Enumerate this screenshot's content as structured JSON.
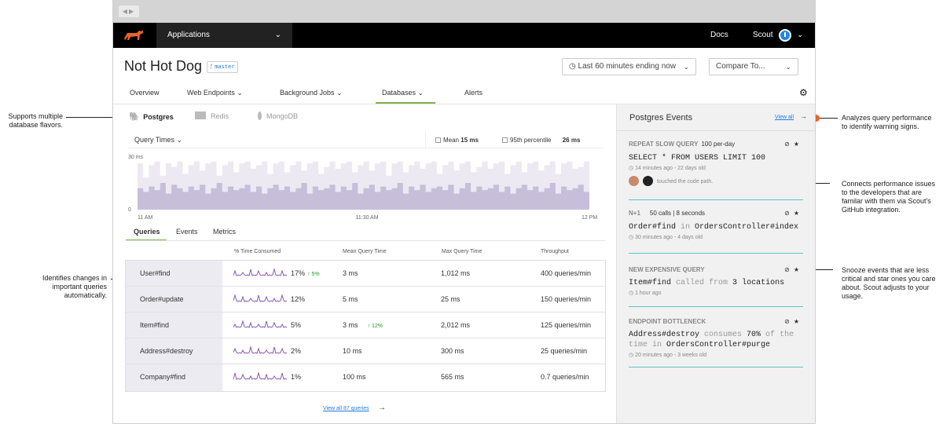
{
  "callouts": {
    "flavors": "Supports multiple\ndatabase flavors.",
    "changes": "Identifies  changes in\nimportant queries\nautomatically.",
    "analyzes": "Analyzes query performance\nto identify warning signs.",
    "connects": "Connects performance issues\nto the developers that are\nfamilar with them via Scout's\nGitHub integration.",
    "snooze": "Snooze events that are less\ncritical and star ones you care\nabout. Scout adjusts to your\nusage."
  },
  "topnav": {
    "app_selector": "Applications",
    "docs": "Docs",
    "user": "Scout"
  },
  "header": {
    "title": "Not Hot Dog",
    "branch": "master",
    "time_range": "Last 60 minutes ending now",
    "compare": "Compare To..."
  },
  "tabs": [
    "Overview",
    "Web Endpoints",
    "Background Jobs",
    "Databases",
    "Alerts"
  ],
  "db_flavors": [
    "Postgres",
    "Redis",
    "MongoDB"
  ],
  "chart_controls": {
    "metric": "Query Times",
    "mean_label": "Mean",
    "mean_value": "15 ms",
    "p95_label": "95th percentile",
    "p95_value": "26 ms"
  },
  "chart_data": {
    "type": "area",
    "ylabel": "",
    "y_ticks": [
      "30 ms",
      "0"
    ],
    "ylim": [
      0,
      30
    ],
    "x_ticks": [
      "11 AM",
      "11:30 AM",
      "12 PM"
    ],
    "series": [
      {
        "name": "95th percentile",
        "values": [
          26,
          18,
          25,
          27,
          19,
          26,
          24,
          27,
          20,
          25,
          27,
          22,
          26,
          27,
          19,
          25,
          27,
          21,
          26,
          27,
          23,
          25,
          27,
          20,
          26,
          27,
          21,
          25,
          27,
          22,
          26,
          27,
          20,
          24,
          27,
          23,
          26,
          27,
          21,
          25,
          27,
          22,
          26,
          27,
          19,
          26,
          27,
          21,
          25,
          27,
          23,
          26,
          27,
          20,
          25,
          27,
          22,
          26,
          27,
          21,
          24,
          27,
          23,
          26,
          27,
          20,
          25,
          27,
          21,
          26,
          27,
          22,
          25,
          27,
          20,
          26,
          27,
          23,
          24,
          27
        ]
      },
      {
        "name": "Mean",
        "values": [
          12,
          10,
          13,
          11,
          15,
          9,
          14,
          12,
          10,
          13,
          11,
          14,
          9,
          12,
          15,
          10,
          13,
          11,
          12,
          14,
          10,
          13,
          9,
          12,
          14,
          11,
          13,
          10,
          12,
          15,
          9,
          13,
          11,
          12,
          14,
          10,
          13,
          11,
          15,
          9,
          12,
          14,
          10,
          13,
          11,
          12,
          15,
          9,
          13,
          11,
          14,
          10,
          12,
          13,
          11,
          14,
          9,
          12,
          15,
          10,
          13,
          11,
          12,
          14,
          10,
          13,
          9,
          12,
          14,
          11,
          13,
          10,
          12,
          15,
          9,
          13,
          11,
          12,
          14,
          10
        ]
      }
    ]
  },
  "query_tabs": [
    "Queries",
    "Events",
    "Metrics"
  ],
  "table": {
    "headers": [
      "% Time Consumed",
      "Mean Query Time",
      "Max Query Time",
      "Throughput"
    ],
    "rows": [
      {
        "name": "User#find",
        "pct": "17%",
        "pct_delta": "↑ 5%",
        "mean": "3 ms",
        "mean_delta": "",
        "max": "1,012 ms",
        "throughput": "400 queries/min"
      },
      {
        "name": "Order#update",
        "pct": "12%",
        "pct_delta": "",
        "mean": "5 ms",
        "mean_delta": "",
        "max": "25 ms",
        "throughput": "150 queries/min"
      },
      {
        "name": "Item#find",
        "pct": "5%",
        "pct_delta": "",
        "mean": "3 ms",
        "mean_delta": "↑ 12%",
        "max": "2,012 ms",
        "throughput": "125 queries/min"
      },
      {
        "name": "Address#destroy",
        "pct": "2%",
        "pct_delta": "",
        "mean": "10 ms",
        "mean_delta": "",
        "max": "300 ms",
        "throughput": "25 queries/min"
      },
      {
        "name": "Company#find",
        "pct": "1%",
        "pct_delta": "",
        "mean": "100 ms",
        "mean_delta": "",
        "max": "565 ms",
        "throughput": "0.7 queries/min"
      }
    ]
  },
  "view_all_queries": "View all 87 queries",
  "events_panel": {
    "title": "Postgres Events",
    "view_all": "View all",
    "events": [
      {
        "title": "REPEAT SLOW QUERY",
        "extra": "100 per-day",
        "code1": "SELECT * FROM USERS LIMIT 100",
        "time": "14 minutes ago - 22 days old",
        "touched": "touched the code path."
      },
      {
        "title": "N+1",
        "extra": "50 calls | 8 seconds",
        "code1": "Order#find in OrdersController#index",
        "time": "30 minutes ago - 4 days old"
      },
      {
        "title": "NEW EXPENSIVE QUERY",
        "extra": "",
        "code1": "Item#find called from 3 locations",
        "time": "1 hour ago"
      },
      {
        "title": "ENDPOINT BOTTLENECK",
        "extra": "",
        "code1": "Address#destroy consumes 70% of the",
        "code2": "time in OrdersController#purge",
        "time": "20 minutes ago - 3 weeks old"
      }
    ]
  },
  "colors": {
    "accent_orange": "#e8652b",
    "accent_green": "#7fb24a",
    "chart_purple": "#c7bfd9",
    "link_blue": "#1e7be0",
    "teal": "#5ac7c6"
  }
}
